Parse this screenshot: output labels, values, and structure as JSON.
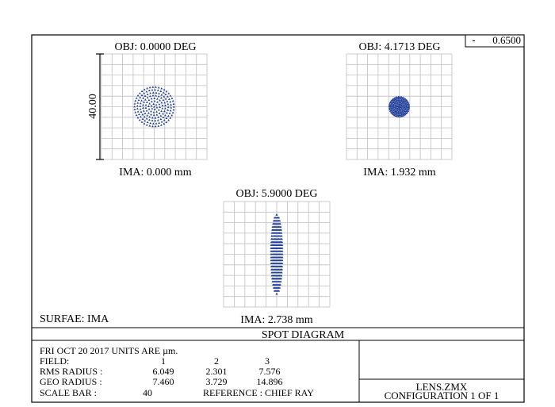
{
  "colors": {
    "frame": "#000000",
    "grid": "#bfbfbf",
    "spot": "#1f3c99"
  },
  "wavelength_legend": {
    "symbol": "⁃",
    "value": "0.6500"
  },
  "scale_label": "40.00",
  "plots": [
    {
      "obj_label": "OBJ: 0.0000 DEG",
      "ima_label": "IMA: 0.000 mm",
      "spot_shape": "round",
      "spot_rms_um": 6.049,
      "spot_geo_um": 7.46
    },
    {
      "obj_label": "OBJ: 4.1713 DEG",
      "ima_label": "IMA: 1.932 mm",
      "spot_shape": "round",
      "spot_rms_um": 2.301,
      "spot_geo_um": 3.729
    },
    {
      "obj_label": "OBJ: 5.9000 DEG",
      "ima_label": "IMA: 2.738 mm",
      "spot_shape": "vertical-ellipse",
      "spot_rms_um": 7.576,
      "spot_geo_um": 14.896
    }
  ],
  "surface_label": "SURFAE: IMA",
  "title": "SPOT DIAGRAM",
  "info": {
    "date_units": "FRI  OCT  20  2017    UNITS ARE µm.",
    "field_label": "FIELD:",
    "field_values": [
      "1",
      "2",
      "3"
    ],
    "rms_label": "RMS RADIUS :",
    "rms_values": [
      "6.049",
      "2.301",
      "7.576"
    ],
    "geo_label": "GEO RADIUS :",
    "geo_values": [
      "7.460",
      "3.729",
      "14.896"
    ],
    "scale_bar_label": "SCALE BAR   :",
    "scale_bar_value": "40",
    "reference": "REFERENCE : CHIEF RAY"
  },
  "file_name": "LENS.ZMX",
  "configuration": "CONFIGURATION  1  OF  1"
}
